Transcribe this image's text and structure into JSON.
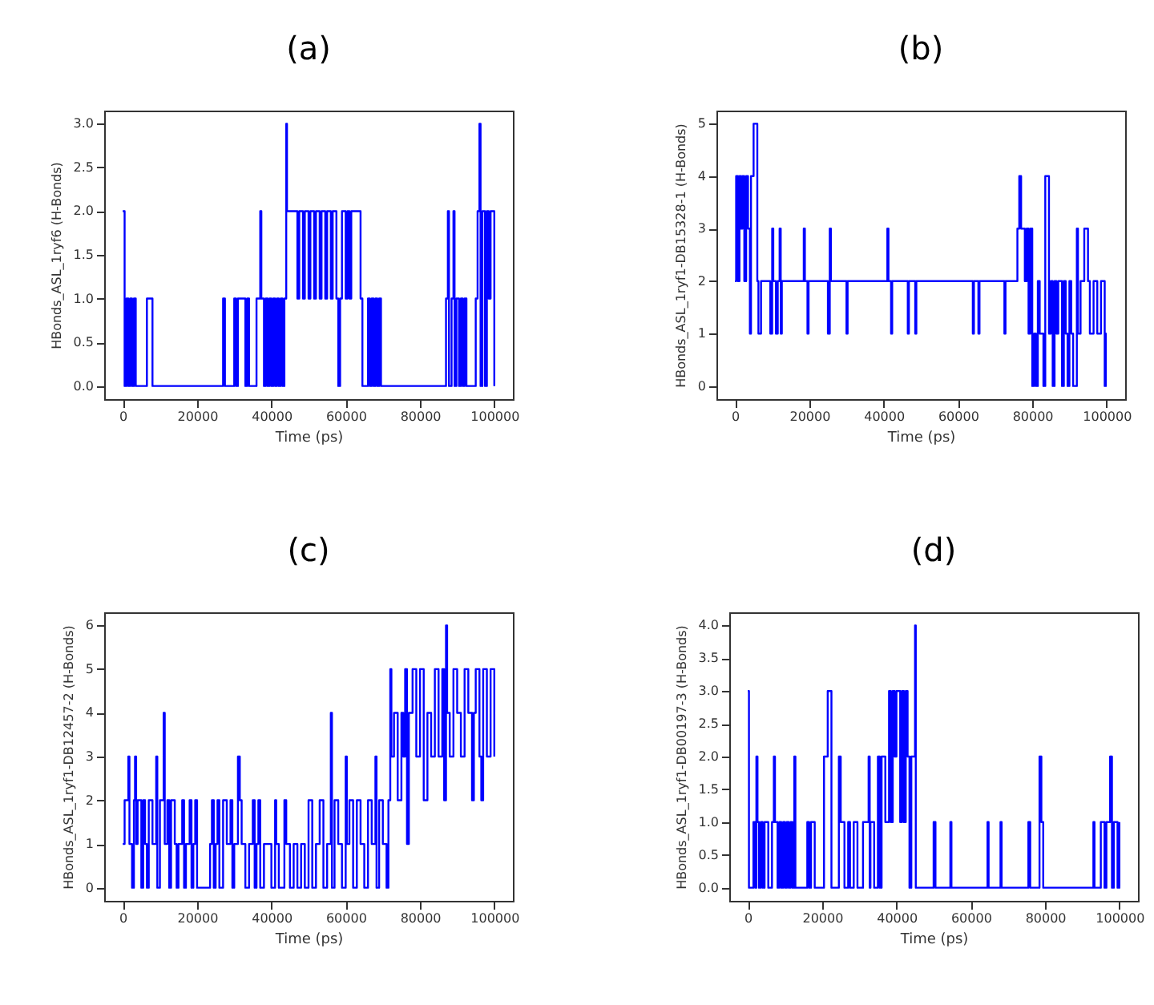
{
  "chart_data": [
    {
      "type": "step",
      "title": "(a)",
      "xlabel": "Time (ps)",
      "ylabel": "HBonds_ASL_1ryf6 (H-Bonds)",
      "color": "#0000ff",
      "xlim": [
        -5000,
        105000
      ],
      "ylim": [
        -0.15,
        3.15
      ],
      "xticks": [
        0,
        20000,
        40000,
        60000,
        80000,
        100000
      ],
      "yticks": [
        {
          "value": 0,
          "label": "0.0"
        },
        0.5,
        {
          "value": 1,
          "label": "1.0"
        },
        1.5,
        {
          "value": 2,
          "label": "2.0"
        },
        2.5,
        {
          "value": 3,
          "label": "3.0"
        }
      ],
      "x": [
        0,
        500,
        1000,
        1500,
        2000,
        2500,
        3000,
        3500,
        6500,
        8000,
        27000,
        27500,
        30000,
        30500,
        31000,
        33000,
        33500,
        34000,
        36000,
        37000,
        37300,
        38000,
        38500,
        39000,
        39500,
        40000,
        40500,
        41000,
        41500,
        42000,
        42500,
        43000,
        43500,
        44000,
        44200,
        47000,
        47500,
        48500,
        49000,
        50000,
        50500,
        51500,
        52000,
        53000,
        53500,
        54500,
        55000,
        56000,
        56500,
        57500,
        58000,
        58500,
        59000,
        60000,
        60500,
        61000,
        61500,
        64000,
        64500,
        66000,
        66500,
        67000,
        67500,
        68000,
        68500,
        69000,
        69500,
        87000,
        87500,
        87800,
        88500,
        89000,
        89300,
        89800,
        90500,
        91000,
        91500,
        92000,
        92500,
        95000,
        95500,
        96000,
        96300,
        96800,
        97500,
        98000,
        98500,
        99000,
        100000
      ],
      "values": [
        2,
        0,
        1,
        0,
        1,
        0,
        1,
        0,
        1,
        0,
        1,
        0,
        1,
        0,
        1,
        0,
        1,
        0,
        1,
        2,
        1,
        0,
        1,
        0,
        1,
        0,
        1,
        0,
        1,
        0,
        1,
        0,
        1,
        3,
        2,
        1,
        2,
        1,
        2,
        1,
        2,
        1,
        2,
        1,
        2,
        1,
        2,
        1,
        2,
        1,
        0,
        1,
        2,
        1,
        2,
        1,
        2,
        1,
        0,
        1,
        0,
        1,
        0,
        1,
        0,
        1,
        0,
        1,
        2,
        0,
        1,
        2,
        0,
        1,
        0,
        1,
        0,
        1,
        0,
        1,
        2,
        3,
        0,
        2,
        0,
        2,
        1,
        2,
        0
      ]
    },
    {
      "type": "step",
      "title": "(b)",
      "xlabel": "Time (ps)",
      "ylabel": "HBonds_ASL_1ryf1-DB15328-1 (H-Bonds)",
      "color": "#0000ff",
      "xlim": [
        -5000,
        105000
      ],
      "ylim": [
        -0.25,
        5.25
      ],
      "xticks": [
        0,
        20000,
        40000,
        60000,
        80000,
        100000
      ],
      "yticks": [
        0,
        1,
        2,
        3,
        4,
        5
      ],
      "x": [
        0,
        300,
        800,
        1200,
        1600,
        2000,
        2500,
        3000,
        3500,
        4000,
        4300,
        5000,
        6000,
        6300,
        7000,
        9500,
        10000,
        10300,
        11000,
        11500,
        12000,
        12300,
        12600,
        18500,
        18800,
        19500,
        19800,
        25000,
        25500,
        25800,
        30000,
        30300,
        41000,
        41300,
        42000,
        42300,
        46500,
        46800,
        48500,
        48800,
        64000,
        64300,
        65500,
        65800,
        72500,
        72800,
        76000,
        76500,
        77000,
        78000,
        78500,
        79000,
        79500,
        80000,
        80500,
        81000,
        81500,
        82000,
        83000,
        83500,
        84500,
        85000,
        85500,
        86000,
        86500,
        87000,
        88000,
        88500,
        89000,
        89500,
        90000,
        90500,
        91000,
        92000,
        92300,
        93000,
        94000,
        95000,
        95500,
        96500,
        97500,
        98500,
        99500,
        99800,
        100000
      ],
      "values": [
        2,
        4,
        2,
        4,
        3,
        4,
        2,
        4,
        3,
        1,
        4,
        5,
        2,
        1,
        2,
        1,
        3,
        2,
        1,
        2,
        3,
        1,
        2,
        3,
        2,
        1,
        2,
        1,
        3,
        2,
        1,
        2,
        3,
        2,
        1,
        2,
        1,
        2,
        1,
        2,
        1,
        2,
        1,
        2,
        1,
        2,
        3,
        4,
        3,
        2,
        3,
        1,
        3,
        0,
        1,
        0,
        2,
        1,
        0,
        4,
        1,
        2,
        0,
        2,
        1,
        2,
        0,
        2,
        1,
        0,
        2,
        1,
        0,
        3,
        1,
        2,
        3,
        2,
        1,
        2,
        1,
        2,
        0,
        1,
        1
      ]
    },
    {
      "type": "step",
      "title": "(c)",
      "xlabel": "Time (ps)",
      "ylabel": "HBonds_ASL_1ryf1-DB12457-2 (H-Bonds)",
      "color": "#0000ff",
      "xlim": [
        -5000,
        105000
      ],
      "ylim": [
        -0.3,
        6.3
      ],
      "xticks": [
        0,
        20000,
        40000,
        60000,
        80000,
        100000
      ],
      "yticks": [
        0,
        1,
        2,
        3,
        4,
        5,
        6
      ],
      "x": [
        0,
        500,
        1500,
        1800,
        2500,
        3000,
        3300,
        3600,
        4000,
        5000,
        5500,
        6000,
        6500,
        7000,
        8000,
        9000,
        9300,
        10000,
        11000,
        11300,
        12000,
        12500,
        13000,
        14000,
        14500,
        15000,
        16000,
        16500,
        17000,
        18000,
        18500,
        19000,
        19500,
        20000,
        23500,
        24000,
        24500,
        25000,
        25500,
        26000,
        27000,
        28000,
        29000,
        29500,
        30000,
        31000,
        31500,
        32000,
        33000,
        34000,
        35000,
        35500,
        36000,
        36500,
        37000,
        38000,
        40000,
        41000,
        41300,
        42000,
        43500,
        44000,
        45000,
        46000,
        47000,
        48000,
        49000,
        50000,
        51000,
        52000,
        53000,
        54000,
        55000,
        56000,
        56300,
        57000,
        58000,
        59000,
        60000,
        60300,
        61000,
        62000,
        63000,
        64000,
        65000,
        66000,
        67000,
        68000,
        68300,
        69000,
        70000,
        71000,
        71500,
        72000,
        72300,
        73000,
        74000,
        75000,
        75500,
        76000,
        76500,
        77000,
        78000,
        79000,
        80000,
        81000,
        82000,
        83000,
        84000,
        85000,
        86000,
        86500,
        87000,
        87300,
        88000,
        89000,
        90000,
        91000,
        92000,
        93000,
        94000,
        94500,
        95000,
        96000,
        96500,
        97000,
        98000,
        99000,
        100000
      ],
      "values": [
        1,
        2,
        3,
        1,
        0,
        2,
        3,
        1,
        2,
        0,
        2,
        1,
        0,
        2,
        1,
        3,
        0,
        2,
        4,
        1,
        2,
        0,
        2,
        1,
        0,
        1,
        2,
        0,
        1,
        2,
        0,
        1,
        2,
        0,
        1,
        2,
        0,
        1,
        2,
        0,
        2,
        1,
        2,
        0,
        1,
        3,
        2,
        1,
        0,
        1,
        2,
        0,
        1,
        2,
        0,
        1,
        0,
        2,
        1,
        0,
        2,
        1,
        0,
        1,
        0,
        1,
        0,
        2,
        0,
        1,
        2,
        0,
        1,
        4,
        0,
        2,
        1,
        0,
        3,
        1,
        2,
        0,
        2,
        1,
        0,
        2,
        1,
        3,
        0,
        2,
        1,
        0,
        2,
        5,
        3,
        4,
        2,
        4,
        3,
        5,
        1,
        4,
        5,
        3,
        5,
        2,
        4,
        3,
        5,
        3,
        5,
        2,
        6,
        4,
        3,
        5,
        4,
        3,
        5,
        4,
        2,
        4,
        5,
        3,
        2,
        5,
        3,
        5,
        3
      ]
    },
    {
      "type": "step",
      "title": "(d)",
      "xlabel": "Time (ps)",
      "ylabel": "HBonds_ASL_1ryf1-DB00197-3 (H-Bonds)",
      "color": "#0000ff",
      "xlim": [
        -5000,
        105000
      ],
      "ylim": [
        -0.2,
        4.2
      ],
      "xticks": [
        0,
        20000,
        40000,
        60000,
        80000,
        100000
      ],
      "yticks": [
        {
          "value": 0,
          "label": "0.0"
        },
        0.5,
        {
          "value": 1,
          "label": "1.0"
        },
        1.5,
        {
          "value": 2,
          "label": "2.0"
        },
        2.5,
        {
          "value": 3,
          "label": "3.0"
        },
        3.5,
        {
          "value": 4,
          "label": "4.0"
        }
      ],
      "x": [
        0,
        300,
        1500,
        2000,
        2300,
        2600,
        3000,
        3500,
        4000,
        4500,
        5500,
        6500,
        7000,
        7300,
        8000,
        8500,
        9000,
        9500,
        10000,
        10500,
        11000,
        11500,
        12000,
        12500,
        12800,
        16000,
        16500,
        17000,
        18000,
        20500,
        21500,
        22500,
        24500,
        25000,
        26000,
        27000,
        27500,
        28500,
        29500,
        31000,
        32500,
        32800,
        33000,
        34000,
        35000,
        35500,
        36000,
        37000,
        38000,
        38500,
        39000,
        39500,
        40000,
        41000,
        41500,
        42000,
        42500,
        43000,
        43500,
        44000,
        45000,
        45200,
        50000,
        50500,
        54500,
        54800,
        64500,
        64800,
        68000,
        68300,
        75500,
        76000,
        78500,
        79000,
        79500,
        93000,
        93300,
        95000,
        96000,
        96500,
        97500,
        98000,
        98500,
        99500,
        100000
      ],
      "values": [
        3,
        0,
        1,
        0,
        2,
        1,
        0,
        1,
        0,
        1,
        0,
        1,
        2,
        1,
        0,
        1,
        0,
        1,
        0,
        1,
        0,
        1,
        0,
        2,
        0,
        1,
        0,
        1,
        0,
        2,
        3,
        0,
        2,
        1,
        0,
        1,
        0,
        1,
        0,
        1,
        2,
        0,
        1,
        0,
        2,
        0,
        2,
        1,
        3,
        1,
        3,
        2,
        3,
        1,
        3,
        1,
        3,
        2,
        0,
        2,
        4,
        0,
        1,
        0,
        1,
        0,
        1,
        0,
        1,
        0,
        1,
        0,
        2,
        1,
        0,
        1,
        0,
        1,
        0,
        1,
        2,
        0,
        1,
        0,
        1
      ]
    }
  ]
}
